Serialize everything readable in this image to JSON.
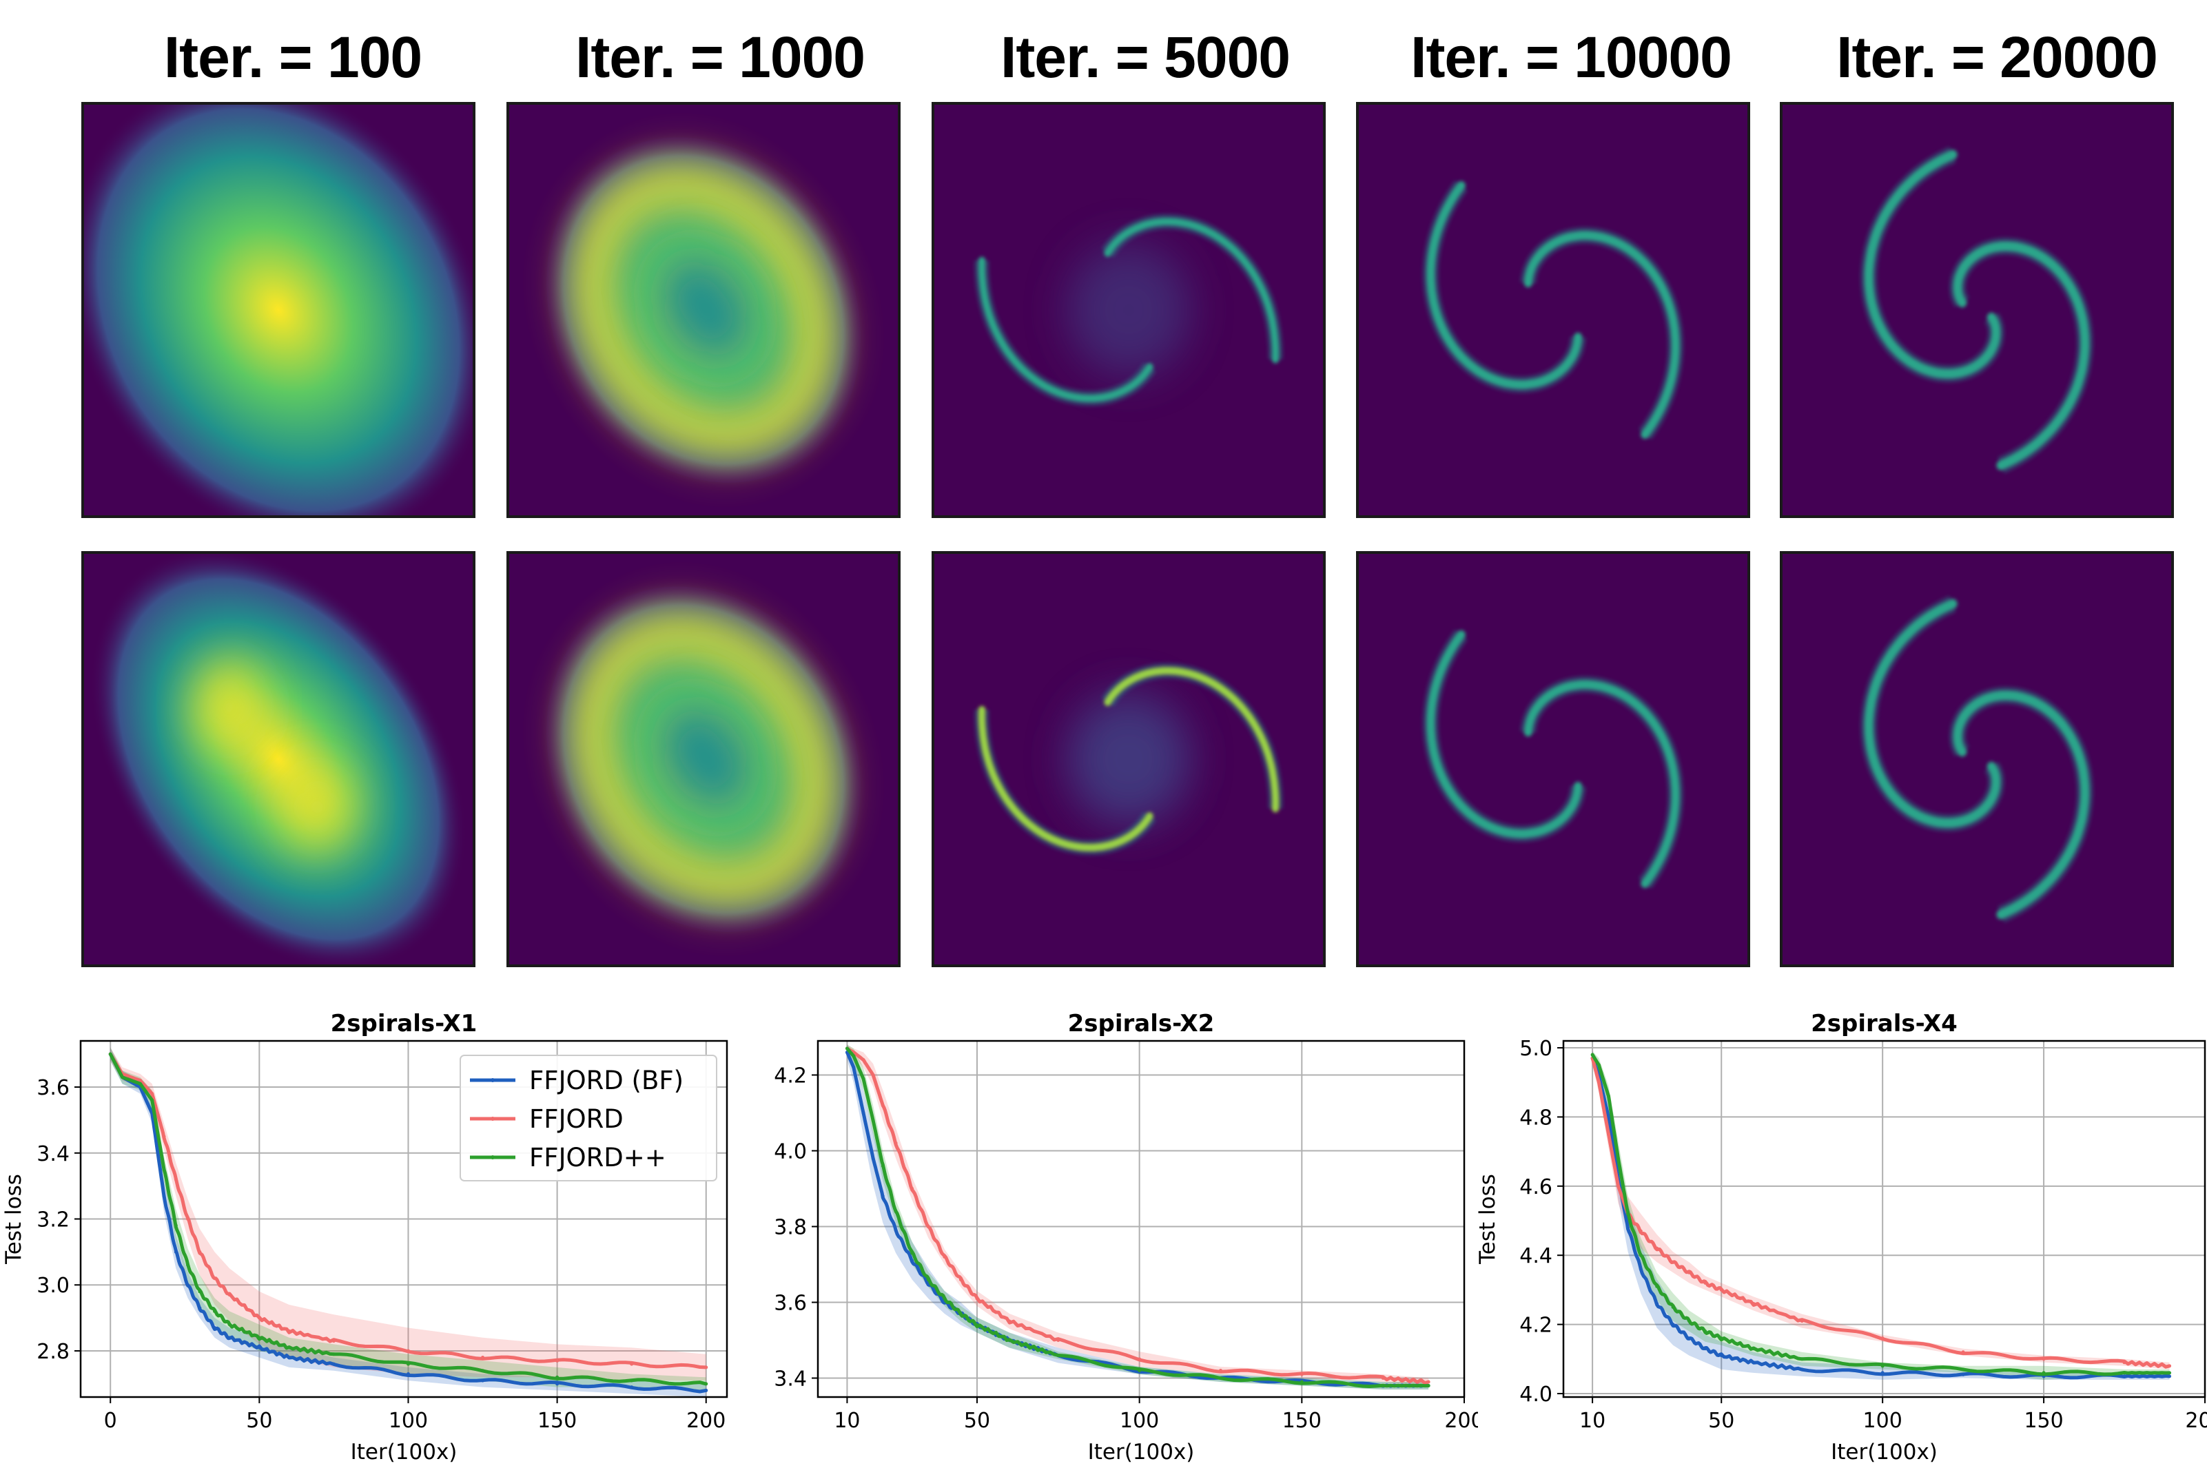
{
  "column_titles": [
    "Iter. = 100",
    "Iter. = 1000",
    "Iter. = 5000",
    "Iter. = 10000",
    "Iter. = 20000"
  ],
  "density_colors": {
    "background": "#440154",
    "teal": "#21918c",
    "green": "#5ec962",
    "yellow": "#fde725"
  },
  "series_colors": {
    "FFJORD (BF)": "#1f5fbf",
    "FFJORD": "#f26b6b",
    "FFJORD++": "#2ca02c"
  },
  "chart_data": [
    {
      "type": "line",
      "title": "2spirals-X1",
      "xlabel": "Iter(100x)",
      "ylabel": "Test loss",
      "xlim": [
        -10,
        207
      ],
      "ylim": [
        2.66,
        3.74
      ],
      "xticks": [
        0,
        50,
        100,
        150,
        200
      ],
      "yticks": [
        2.8,
        3.0,
        3.2,
        3.4,
        3.6
      ],
      "grid": true,
      "legend": "top-right",
      "series": [
        {
          "name": "FFJORD (BF)",
          "x": [
            0,
            4,
            10,
            14,
            18,
            22,
            26,
            30,
            35,
            40,
            50,
            60,
            75,
            100,
            125,
            150,
            175,
            200
          ],
          "y": [
            3.7,
            3.63,
            3.6,
            3.52,
            3.27,
            3.1,
            3.0,
            2.93,
            2.87,
            2.84,
            2.81,
            2.78,
            2.76,
            2.73,
            2.71,
            2.7,
            2.69,
            2.68
          ],
          "band": [
            0.02,
            0.02,
            0.02,
            0.03,
            0.05,
            0.05,
            0.04,
            0.03,
            0.03,
            0.03,
            0.03,
            0.03,
            0.02,
            0.02,
            0.02,
            0.02,
            0.02,
            0.02
          ]
        },
        {
          "name": "FFJORD",
          "x": [
            0,
            4,
            10,
            14,
            18,
            22,
            26,
            30,
            35,
            40,
            50,
            60,
            75,
            100,
            125,
            150,
            175,
            200
          ],
          "y": [
            3.7,
            3.64,
            3.62,
            3.58,
            3.45,
            3.32,
            3.2,
            3.1,
            3.02,
            2.97,
            2.9,
            2.86,
            2.83,
            2.8,
            2.78,
            2.77,
            2.76,
            2.75
          ],
          "band": [
            0.02,
            0.02,
            0.02,
            0.03,
            0.04,
            0.05,
            0.06,
            0.07,
            0.08,
            0.08,
            0.08,
            0.08,
            0.08,
            0.07,
            0.06,
            0.05,
            0.05,
            0.04
          ]
        },
        {
          "name": "FFJORD++",
          "x": [
            0,
            4,
            10,
            14,
            18,
            22,
            26,
            30,
            35,
            40,
            50,
            60,
            75,
            100,
            125,
            150,
            175,
            200
          ],
          "y": [
            3.7,
            3.63,
            3.61,
            3.56,
            3.35,
            3.18,
            3.06,
            2.98,
            2.92,
            2.88,
            2.84,
            2.81,
            2.79,
            2.76,
            2.74,
            2.72,
            2.71,
            2.7
          ],
          "band": [
            0.02,
            0.02,
            0.02,
            0.03,
            0.04,
            0.05,
            0.05,
            0.05,
            0.04,
            0.04,
            0.04,
            0.03,
            0.03,
            0.03,
            0.03,
            0.03,
            0.02,
            0.02
          ]
        }
      ]
    },
    {
      "type": "line",
      "title": "2spirals-X2",
      "xlabel": "Iter(100x)",
      "ylabel": "",
      "xlim": [
        1,
        200
      ],
      "ylim": [
        3.35,
        4.29
      ],
      "xticks": [
        10,
        50,
        100,
        150,
        200
      ],
      "yticks": [
        3.4,
        3.6,
        3.8,
        4.0,
        4.2
      ],
      "grid": true,
      "series": [
        {
          "name": "FFJORD (BF)",
          "x": [
            10,
            12,
            15,
            18,
            21,
            25,
            30,
            35,
            40,
            45,
            50,
            60,
            75,
            100,
            125,
            150,
            175,
            189
          ],
          "y": [
            4.26,
            4.22,
            4.1,
            3.98,
            3.88,
            3.79,
            3.71,
            3.65,
            3.6,
            3.57,
            3.54,
            3.5,
            3.46,
            3.42,
            3.4,
            3.39,
            3.38,
            3.38
          ],
          "band": [
            0.02,
            0.04,
            0.06,
            0.07,
            0.07,
            0.06,
            0.05,
            0.04,
            0.03,
            0.03,
            0.02,
            0.02,
            0.02,
            0.01,
            0.01,
            0.01,
            0.01,
            0.01
          ]
        },
        {
          "name": "FFJORD",
          "x": [
            10,
            12,
            15,
            18,
            21,
            25,
            30,
            35,
            40,
            45,
            50,
            60,
            75,
            100,
            125,
            150,
            175,
            189
          ],
          "y": [
            4.27,
            4.26,
            4.24,
            4.2,
            4.12,
            4.02,
            3.9,
            3.8,
            3.72,
            3.66,
            3.61,
            3.55,
            3.5,
            3.45,
            3.42,
            3.41,
            3.4,
            3.39
          ],
          "band": [
            0.01,
            0.01,
            0.02,
            0.03,
            0.04,
            0.04,
            0.03,
            0.03,
            0.02,
            0.02,
            0.02,
            0.02,
            0.02,
            0.02,
            0.01,
            0.01,
            0.01,
            0.01
          ]
        },
        {
          "name": "FFJORD++",
          "x": [
            10,
            12,
            15,
            18,
            21,
            25,
            30,
            35,
            40,
            45,
            50,
            60,
            75,
            100,
            125,
            150,
            175,
            189
          ],
          "y": [
            4.27,
            4.25,
            4.19,
            4.08,
            3.96,
            3.84,
            3.73,
            3.66,
            3.61,
            3.57,
            3.54,
            3.5,
            3.46,
            3.42,
            3.4,
            3.39,
            3.38,
            3.38
          ],
          "band": [
            0.01,
            0.02,
            0.03,
            0.04,
            0.04,
            0.03,
            0.03,
            0.02,
            0.02,
            0.02,
            0.02,
            0.02,
            0.01,
            0.01,
            0.01,
            0.01,
            0.01,
            0.01
          ]
        }
      ]
    },
    {
      "type": "line",
      "title": "2spirals-X4",
      "xlabel": "Iter(100x)",
      "ylabel": "Test loss",
      "xlim": [
        1,
        200
      ],
      "ylim": [
        3.99,
        5.02
      ],
      "xticks": [
        10,
        50,
        100,
        150,
        200
      ],
      "yticks": [
        4.0,
        4.2,
        4.4,
        4.6,
        4.8,
        5.0
      ],
      "grid": true,
      "series": [
        {
          "name": "FFJORD (BF)",
          "x": [
            10,
            12,
            15,
            18,
            21,
            25,
            30,
            35,
            40,
            45,
            50,
            60,
            75,
            100,
            125,
            150,
            175,
            189
          ],
          "y": [
            4.97,
            4.92,
            4.8,
            4.62,
            4.48,
            4.36,
            4.26,
            4.2,
            4.16,
            4.13,
            4.11,
            4.09,
            4.07,
            4.06,
            4.055,
            4.05,
            4.05,
            4.05
          ],
          "band": [
            0.02,
            0.03,
            0.05,
            0.06,
            0.07,
            0.07,
            0.07,
            0.06,
            0.05,
            0.04,
            0.04,
            0.03,
            0.02,
            0.02,
            0.01,
            0.01,
            0.01,
            0.01
          ]
        },
        {
          "name": "FFJORD",
          "x": [
            10,
            12,
            15,
            18,
            21,
            25,
            30,
            35,
            40,
            45,
            50,
            60,
            75,
            100,
            125,
            150,
            175,
            189
          ],
          "y": [
            4.97,
            4.9,
            4.75,
            4.6,
            4.52,
            4.47,
            4.42,
            4.38,
            4.35,
            4.32,
            4.3,
            4.26,
            4.21,
            4.16,
            4.12,
            4.1,
            4.09,
            4.08
          ],
          "band": [
            0.02,
            0.03,
            0.04,
            0.05,
            0.05,
            0.05,
            0.04,
            0.03,
            0.03,
            0.02,
            0.02,
            0.02,
            0.02,
            0.01,
            0.01,
            0.01,
            0.01,
            0.01
          ]
        },
        {
          "name": "FFJORD++",
          "x": [
            10,
            12,
            15,
            18,
            21,
            25,
            30,
            35,
            40,
            45,
            50,
            60,
            75,
            100,
            125,
            150,
            175,
            189
          ],
          "y": [
            4.98,
            4.95,
            4.86,
            4.68,
            4.52,
            4.4,
            4.31,
            4.25,
            4.21,
            4.18,
            4.16,
            4.13,
            4.1,
            4.08,
            4.07,
            4.06,
            4.06,
            4.06
          ],
          "band": [
            0.01,
            0.02,
            0.03,
            0.05,
            0.05,
            0.05,
            0.04,
            0.04,
            0.03,
            0.03,
            0.02,
            0.02,
            0.02,
            0.01,
            0.01,
            0.02,
            0.01,
            0.01
          ]
        }
      ]
    }
  ]
}
